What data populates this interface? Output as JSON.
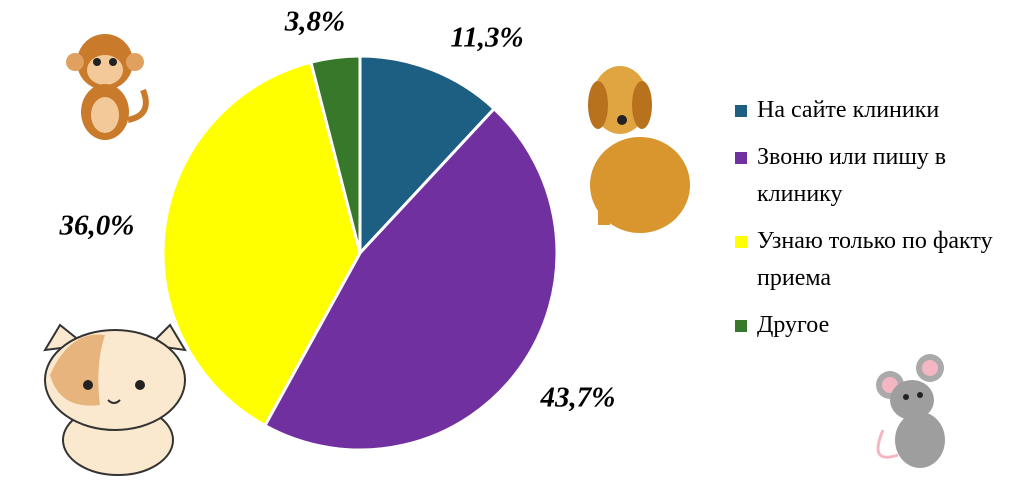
{
  "chart_data": {
    "type": "pie",
    "categories": [
      "На сайте клиники",
      "Звоню или пишу в клинику",
      "Узнаю только по факту приема",
      "Другое"
    ],
    "values": [
      11.3,
      43.7,
      36.0,
      3.8
    ],
    "value_labels": [
      "11,3%",
      "43,7%",
      "36,0%",
      "3,8%"
    ],
    "colors": [
      "#1c5f82",
      "#7030a0",
      "#ffff00",
      "#38782a"
    ],
    "legend": "right"
  }
}
